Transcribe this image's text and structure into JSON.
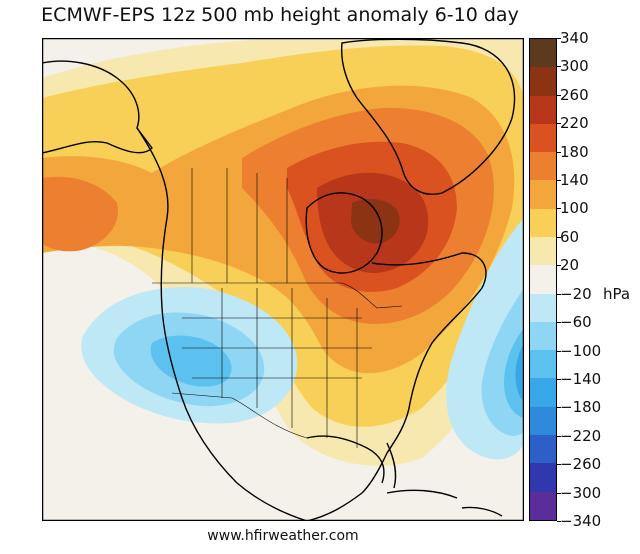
{
  "title": "ECMWF-EPS 12z 500 mb height anomaly 6-10 day",
  "footer": "www.hfirweather.com",
  "map": {
    "region": "North America",
    "features": [
      "Greenland",
      "Alaska",
      "Canada",
      "Hudson Bay",
      "United States",
      "Mexico",
      "Caribbean"
    ],
    "highlights": [
      {
        "name": "Eastern Canada ridge",
        "anomaly_range": "220 to 300"
      },
      {
        "name": "Western US trough",
        "anomaly_range": "-20 to -100"
      },
      {
        "name": "Western Atlantic trough",
        "anomaly_range": "-20 to -140"
      }
    ]
  },
  "colorbar": {
    "unit": "hPa",
    "ticks": [
      "340",
      "300",
      "260",
      "220",
      "180",
      "140",
      "100",
      "60",
      "20",
      "−20",
      "−60",
      "−100",
      "−140",
      "−180",
      "−220",
      "−260",
      "−300",
      "−340"
    ],
    "colors": [
      "#5b3a1e",
      "#8b3312",
      "#b8361a",
      "#d9521f",
      "#ec8030",
      "#f3a63b",
      "#f8cf57",
      "#f7e8b0",
      "#f4f1ea",
      "#bfe8f7",
      "#8fd6f5",
      "#5cc1ef",
      "#36a7e7",
      "#2e8bdc",
      "#2d5fc9",
      "#3138ad",
      "#5a2d9a"
    ]
  }
}
